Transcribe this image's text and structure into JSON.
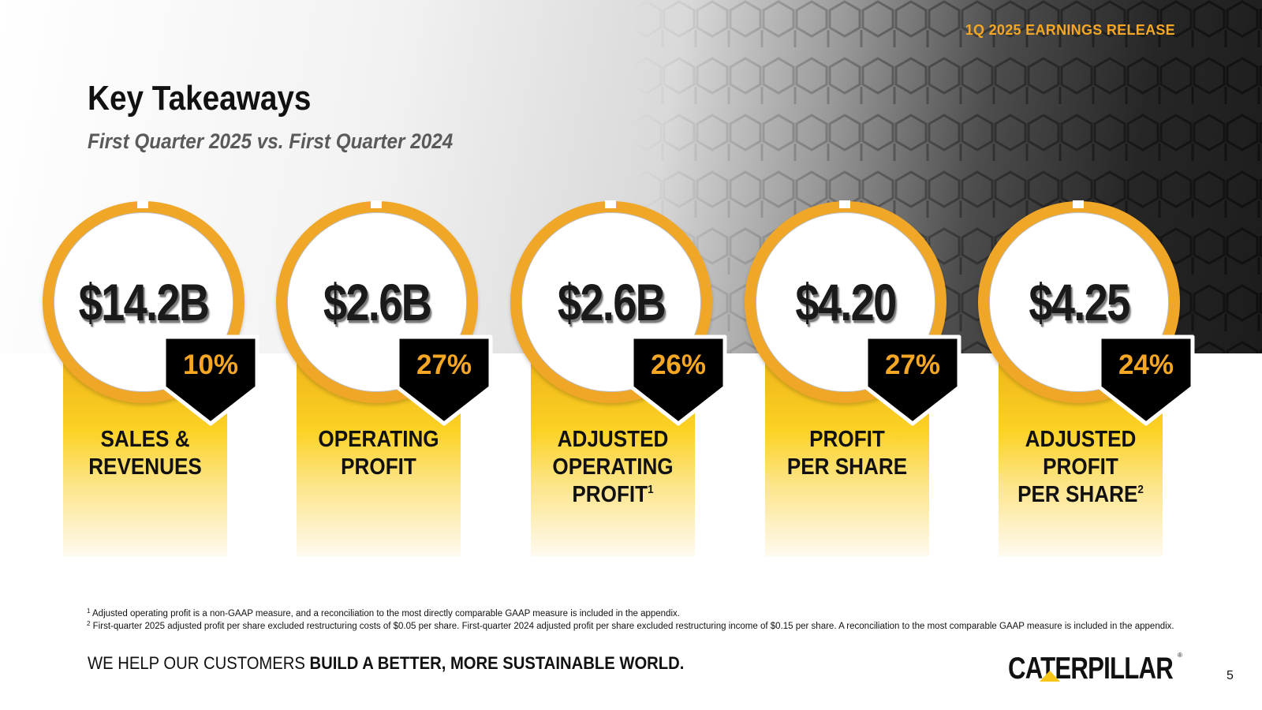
{
  "header": {
    "release_tag": "1Q 2025 EARNINGS RELEASE",
    "title": "Key Takeaways",
    "subtitle": "First Quarter 2025 vs. First Quarter 2024"
  },
  "kpis": [
    {
      "value": "$14.2B",
      "change": "10%",
      "label_lines": [
        "SALES &",
        "REVENUES"
      ],
      "footnote_ref": ""
    },
    {
      "value": "$2.6B",
      "change": "27%",
      "label_lines": [
        "OPERATING",
        "PROFIT"
      ],
      "footnote_ref": ""
    },
    {
      "value": "$2.6B",
      "change": "26%",
      "label_lines": [
        "ADJUSTED",
        "OPERATING",
        "PROFIT"
      ],
      "footnote_ref": "1"
    },
    {
      "value": "$4.20",
      "change": "27%",
      "label_lines": [
        "PROFIT",
        "PER SHARE"
      ],
      "footnote_ref": ""
    },
    {
      "value": "$4.25",
      "change": "24%",
      "label_lines": [
        "ADJUSTED",
        "PROFIT",
        "PER SHARE"
      ],
      "footnote_ref": "2"
    }
  ],
  "footnotes": [
    {
      "marker": "1",
      "text": "Adjusted operating profit is a non-GAAP measure, and a reconciliation to the most directly comparable GAAP measure is included in the appendix."
    },
    {
      "marker": "2",
      "text": "First-quarter 2025 adjusted profit per share excluded restructuring costs of $0.05 per share. First-quarter 2024 adjusted profit per share excluded restructuring income of $0.15 per share. A reconciliation to the most comparable GAAP measure is included in the appendix."
    }
  ],
  "footer": {
    "tagline_regular": "WE HELP OUR CUSTOMERS ",
    "tagline_bold": "BUILD A BETTER, MORE SUSTAINABLE WORLD.",
    "logo_text": "CATERPILLAR",
    "logo_mark": "®",
    "page_number": "5"
  },
  "colors": {
    "accent": "#f5a623",
    "ring": "#f0a727",
    "badge": "#000000",
    "text": "#111111"
  }
}
